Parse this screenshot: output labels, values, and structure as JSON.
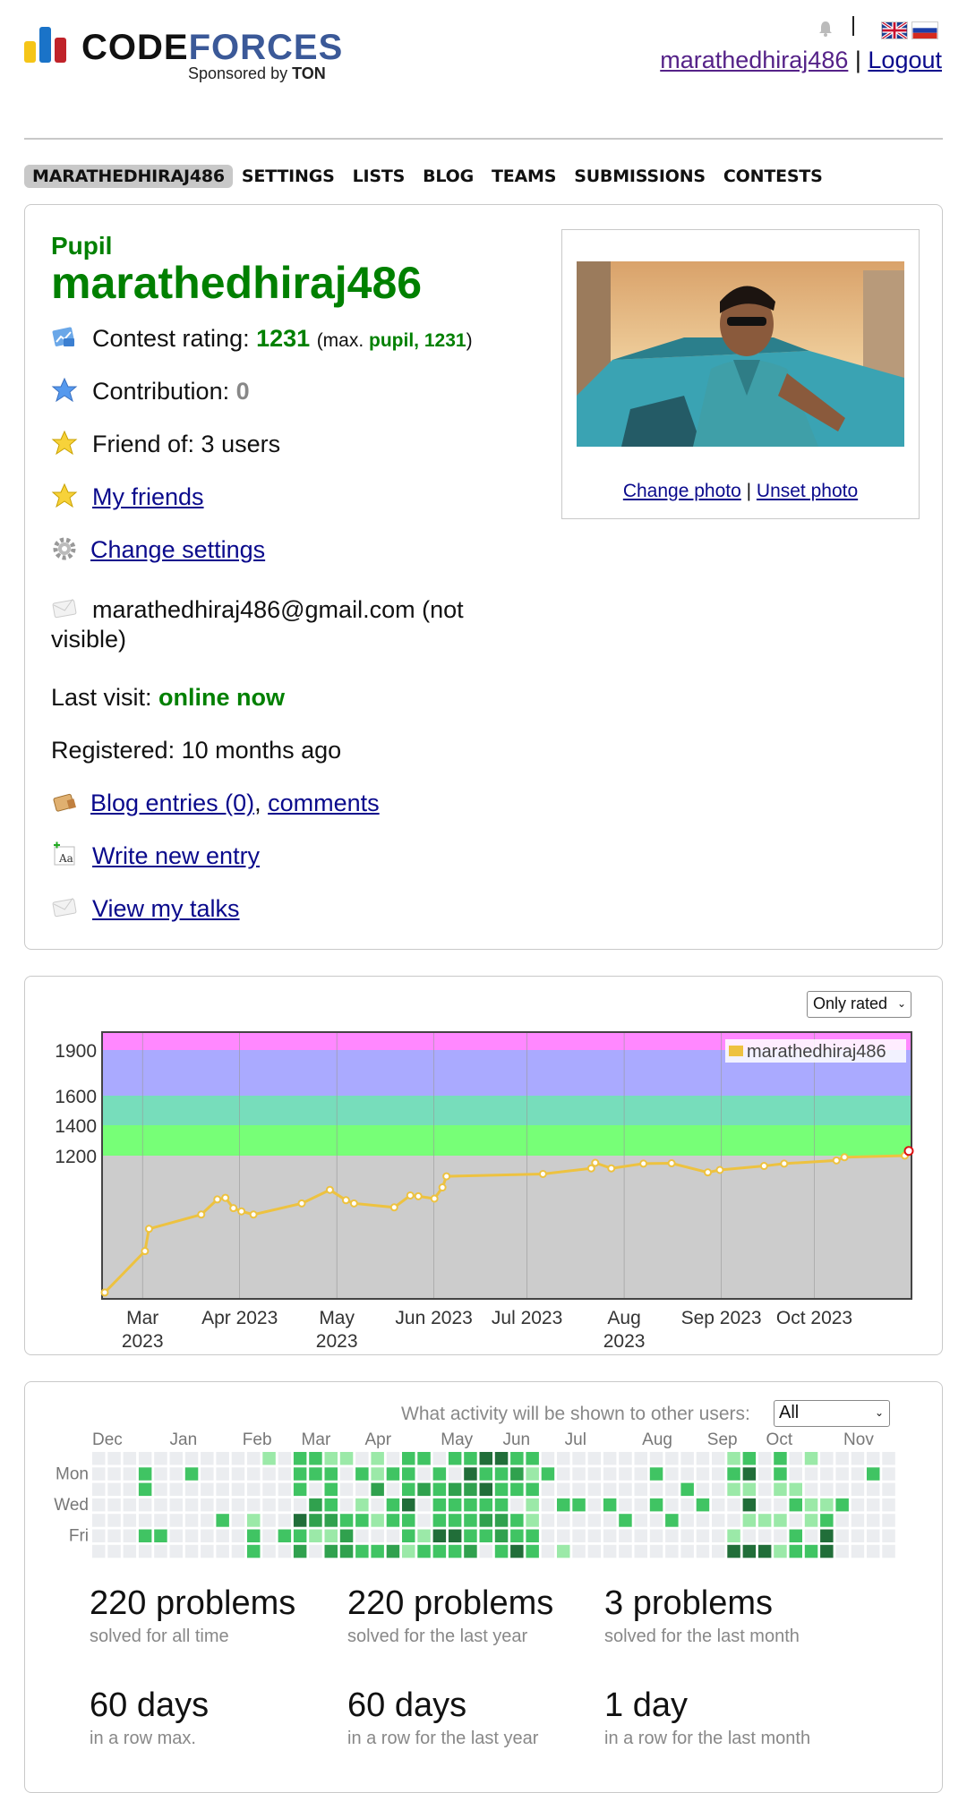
{
  "header": {
    "logo_text_a": "CODE",
    "logo_text_b": "FORCES",
    "logo_sponsored": "Sponsored by",
    "logo_sponsor": "TON",
    "user": "marathedhiraj486",
    "sep": "|",
    "logout": "Logout"
  },
  "menu": [
    "MARATHEDHIRAJ486",
    "SETTINGS",
    "LISTS",
    "BLOG",
    "TEAMS",
    "SUBMISSIONS",
    "CONTESTS"
  ],
  "profile": {
    "rank": "Pupil",
    "handle": "marathedhiraj486",
    "contest_rating_label": "Contest rating: ",
    "contest_rating": "1231",
    "max_prefix": "(max. ",
    "max_rank": "pupil, 1231",
    "max_suffix": ")",
    "contribution_label": "Contribution: ",
    "contribution": "0",
    "friend_of": "Friend of: 3 users",
    "my_friends": "My friends",
    "change_settings": "Change settings",
    "email_line1": "marathedhiraj486@gmail.com (not",
    "email_line2": "visible)",
    "last_visit_label": "Last visit: ",
    "last_visit": "online now",
    "registered": "Registered: 10 months ago",
    "blog_entries": "Blog entries (0)",
    "comma": ", ",
    "comments": "comments",
    "write_entry": "Write new entry",
    "view_talks": "View my talks",
    "change_photo": "Change photo",
    "unset_photo": "Unset photo",
    "photo_sep": " | "
  },
  "rating_chart": {
    "filter": "Only rated",
    "chart_data": {
      "type": "line",
      "series": [
        {
          "name": "marathedhiraj486",
          "color": "#edc240"
        }
      ],
      "y_ticks": [
        1200,
        1400,
        1600,
        1900
      ],
      "x_ticks": [
        [
          "Mar",
          "2023"
        ],
        [
          "Apr 2023"
        ],
        [
          "May",
          "2023"
        ],
        [
          "Jun 2023"
        ],
        [
          "Jul 2023"
        ],
        [
          "Aug",
          "2023"
        ],
        [
          "Sep 2023"
        ],
        [
          "Oct 2023"
        ]
      ],
      "bands": [
        {
          "from": 1900,
          "to": 2100,
          "color": "#ff88ff"
        },
        {
          "from": 1600,
          "to": 1900,
          "color": "#aaaaff"
        },
        {
          "from": 1400,
          "to": 1600,
          "color": "#77ddbb"
        },
        {
          "from": 1200,
          "to": 1400,
          "color": "#77ff77"
        },
        {
          "from": 0,
          "to": 1200,
          "color": "#cccccc"
        }
      ],
      "points_px_note": "",
      "values": [
        340,
        600,
        740,
        830,
        925,
        935,
        870,
        850,
        830,
        900,
        985,
        920,
        900,
        875,
        950,
        945,
        930,
        1000,
        1070,
        1085,
        1120,
        1155,
        1120,
        1150,
        1152,
        1095,
        1110,
        1135,
        1150,
        1170,
        1190,
        1200,
        1231
      ],
      "x_positions": [
        0,
        0.05,
        0.055,
        0.12,
        0.14,
        0.15,
        0.16,
        0.17,
        0.185,
        0.245,
        0.28,
        0.3,
        0.31,
        0.36,
        0.38,
        0.39,
        0.41,
        0.42,
        0.425,
        0.545,
        0.605,
        0.61,
        0.63,
        0.67,
        0.705,
        0.75,
        0.765,
        0.82,
        0.845,
        0.91,
        0.92,
        0.995,
        1.0
      ],
      "ylim": [
        300,
        2100
      ]
    }
  },
  "activity": {
    "label": "What activity will be shown to other users:",
    "selected": "All",
    "months": [
      "Dec",
      "Jan",
      "Feb",
      "Mar",
      "Apr",
      "May",
      "Jun",
      "Jul",
      "Aug",
      "Sep",
      "Oct",
      "Nov"
    ],
    "days": [
      "Mon",
      "Wed",
      "Fri"
    ],
    "stats": [
      {
        "big": "220 problems",
        "sub": "solved for all time"
      },
      {
        "big": "220 problems",
        "sub": "solved for the last year"
      },
      {
        "big": "3 problems",
        "sub": "solved for the last month"
      },
      {
        "big": "60 days",
        "sub": "in a row max."
      },
      {
        "big": "60 days",
        "sub": "in a row for the last year"
      },
      {
        "big": "1 day",
        "sub": "in a row for the last month"
      }
    ]
  }
}
